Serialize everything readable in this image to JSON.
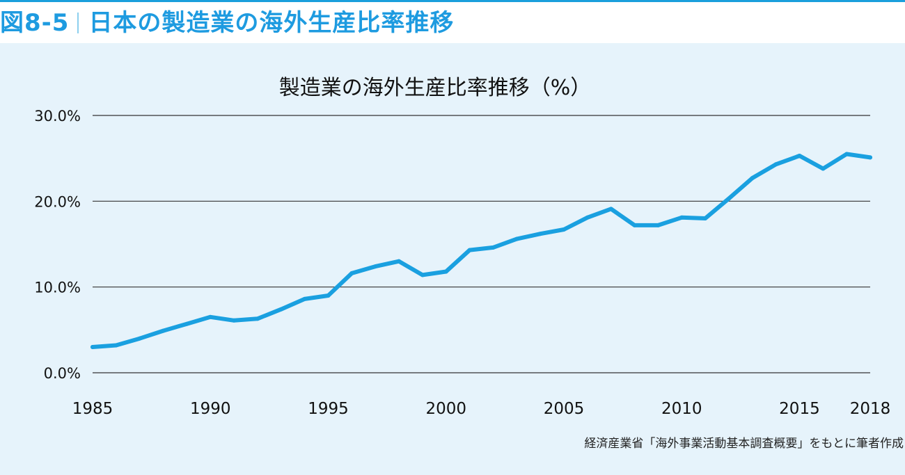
{
  "header": {
    "figure_label": "図8-5",
    "title": "日本の製造業の海外生産比率推移"
  },
  "source_note": "経済産業省「海外事業活動基本調査概要」をもとに筆者作成",
  "colors": {
    "accent": "#1e9be0",
    "line": "#1aa0e0",
    "panel_background": "#e6f3fb",
    "gridline": "#333333"
  },
  "chart_data": {
    "type": "line",
    "title": "製造業の海外生産比率推移（%）",
    "xlabel": "",
    "ylabel": "",
    "ylim": [
      0,
      30
    ],
    "xlim": [
      1985,
      2018
    ],
    "y_ticks": [
      "0.0%",
      "10.0%",
      "20.0%",
      "30.0%"
    ],
    "y_tick_values": [
      0,
      10,
      20,
      30
    ],
    "x_ticks": [
      "1985",
      "1990",
      "1995",
      "2000",
      "2005",
      "2010",
      "2015",
      "2018"
    ],
    "x_tick_values": [
      1985,
      1990,
      1995,
      2000,
      2005,
      2010,
      2015,
      2018
    ],
    "grid": "horizontal",
    "legend": "none",
    "series": [
      {
        "x": [
          1985,
          1986,
          1987,
          1988,
          1989,
          1990,
          1991,
          1992,
          1993,
          1994,
          1995,
          1996,
          1997,
          1998,
          1999,
          2000,
          2001,
          2002,
          2003,
          2004,
          2005,
          2006,
          2007,
          2008,
          2009,
          2010,
          2011,
          2012,
          2013,
          2014,
          2015,
          2016,
          2017,
          2018
        ],
        "values": [
          3.0,
          3.2,
          4.0,
          4.9,
          5.7,
          6.5,
          6.1,
          6.3,
          7.4,
          8.6,
          9.0,
          11.6,
          12.4,
          13.0,
          11.4,
          11.8,
          14.3,
          14.6,
          15.6,
          16.2,
          16.7,
          18.1,
          19.1,
          17.2,
          17.2,
          18.1,
          18.0,
          20.3,
          22.7,
          24.3,
          25.3,
          23.8,
          25.5,
          25.1
        ]
      }
    ]
  }
}
